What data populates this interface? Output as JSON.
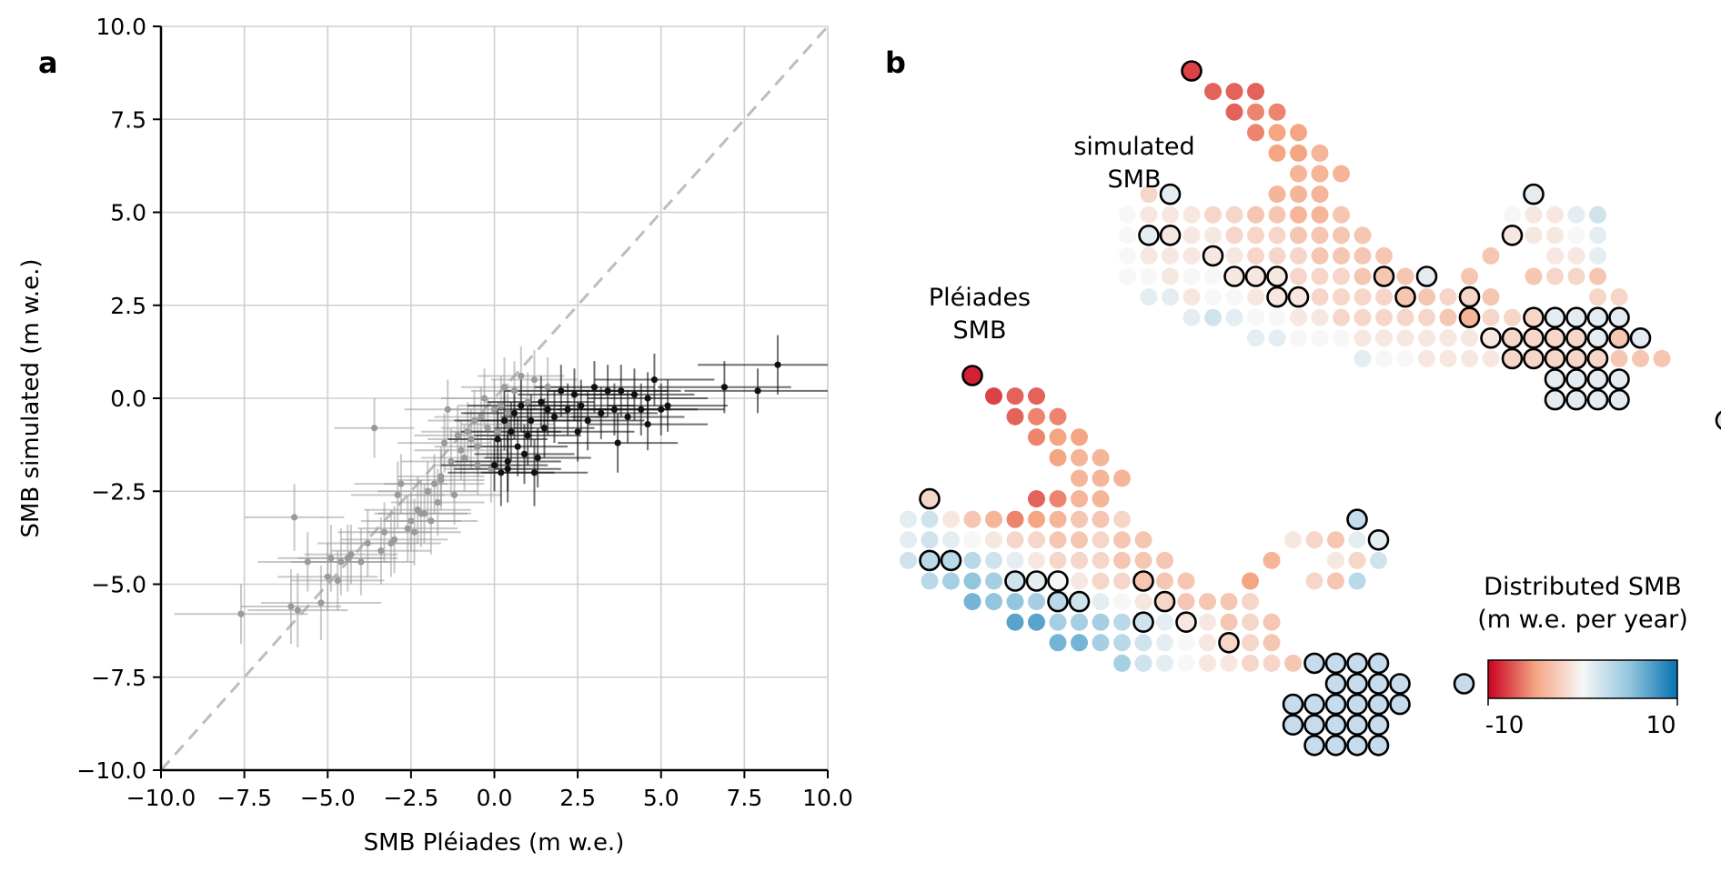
{
  "panel_a": {
    "label": "a",
    "xlabel": "SMB Pléiades (m w.e.)",
    "ylabel": "SMB simulated (m w.e.)",
    "xlim": [
      -10,
      10
    ],
    "ylim": [
      -10,
      10
    ],
    "ticks": [
      "−10.0",
      "−7.5",
      "−5.0",
      "−2.5",
      "0.0",
      "2.5",
      "5.0",
      "7.5",
      "10.0"
    ]
  },
  "panel_b": {
    "label": "b",
    "simulated_label": [
      "simulated",
      "SMB"
    ],
    "pleiades_label": [
      "Pléiades",
      "SMB"
    ],
    "colorbar_title": [
      "Distributed SMB",
      "(m w.e. per year)"
    ],
    "colorbar_min": "-10",
    "colorbar_max": "10"
  },
  "colors": {
    "neg": "#ca0020",
    "mid": "#f7f7f7",
    "pos": "#2a74b2",
    "grey_pts": "#9a9a9a",
    "black_pts": "#111111"
  },
  "chart_data": [
    {
      "type": "scatter",
      "title": "",
      "xlabel": "SMB Pléiades (m w.e.)",
      "ylabel": "SMB simulated (m w.e.)",
      "xlim": [
        -10,
        10
      ],
      "ylim": [
        -10,
        10
      ],
      "grid": true,
      "identity_line": true,
      "series": [
        {
          "name": "grey points",
          "color": "#9a9a9a",
          "x": [
            -7.6,
            -6.1,
            -6.0,
            -5.9,
            -5.6,
            -5.2,
            -5.0,
            -4.9,
            -4.7,
            -4.6,
            -4.4,
            -4.3,
            -4.0,
            -3.8,
            -3.6,
            -3.4,
            -3.3,
            -3.1,
            -3.0,
            -2.8,
            -2.6,
            -2.5,
            -2.4,
            -2.3,
            -2.1,
            -2.0,
            -1.9,
            -1.8,
            -1.7,
            -1.6,
            -1.5,
            -1.4,
            -1.3,
            -1.2,
            -1.1,
            -1.0,
            -0.9,
            -0.8,
            -0.7,
            -0.6,
            -0.5,
            -0.4,
            -0.3,
            -0.2,
            -0.1,
            0.0,
            0.1,
            0.2,
            0.3,
            0.4,
            0.6,
            0.8,
            1.0,
            1.2,
            -2.9,
            -2.2,
            -1.6,
            -0.5,
            0.4,
            1.6
          ],
          "y": [
            -5.8,
            -5.6,
            -3.2,
            -5.7,
            -4.4,
            -5.5,
            -4.8,
            -4.3,
            -4.9,
            -4.4,
            -4.3,
            -4.2,
            -4.4,
            -3.9,
            -0.8,
            -4.1,
            -3.6,
            -3.9,
            -3.8,
            -2.3,
            -3.5,
            -3.3,
            -3.6,
            -3.0,
            -3.1,
            -2.5,
            -3.3,
            -2.3,
            -2.8,
            -2.1,
            -1.2,
            -0.3,
            -1.7,
            -2.6,
            -1.0,
            -1.4,
            -1.6,
            -0.9,
            -1.1,
            -0.6,
            -1.3,
            -0.5,
            0.0,
            -0.8,
            -1.9,
            -0.3,
            -0.9,
            -0.2,
            0.3,
            -0.7,
            0.2,
            0.6,
            -0.1,
            0.5,
            -2.6,
            -3.1,
            -2.2,
            -1.8,
            -0.4,
            0.3
          ],
          "xerr": [
            2.0,
            1.5,
            1.5,
            1.5,
            1.5,
            1.8,
            1.5,
            1.6,
            1.4,
            1.5,
            1.5,
            1.4,
            1.6,
            1.5,
            1.2,
            1.5,
            1.4,
            1.5,
            1.6,
            1.4,
            1.5,
            1.5,
            1.4,
            1.6,
            1.4,
            1.5,
            1.4,
            1.5,
            1.4,
            1.3,
            1.4,
            1.3,
            1.5,
            1.4,
            1.3,
            1.4,
            1.3,
            1.4,
            1.3,
            1.4,
            1.3,
            1.4,
            1.3,
            1.4,
            1.4,
            1.3,
            1.4,
            1.3,
            1.3,
            1.4,
            1.3,
            1.3,
            1.3,
            1.3,
            1.4,
            1.4,
            1.3,
            1.3,
            1.3,
            1.3
          ],
          "yerr": [
            0.8,
            1.0,
            0.9,
            1.0,
            0.8,
            1.0,
            0.9,
            0.9,
            0.8,
            0.9,
            0.9,
            0.8,
            0.9,
            0.9,
            0.8,
            0.9,
            0.8,
            0.9,
            0.9,
            0.8,
            0.9,
            0.8,
            0.9,
            0.9,
            0.8,
            0.8,
            0.9,
            0.8,
            0.9,
            0.8,
            0.8,
            0.8,
            0.9,
            0.8,
            0.8,
            0.8,
            0.9,
            0.8,
            0.8,
            0.8,
            0.8,
            0.8,
            0.8,
            0.8,
            0.9,
            0.8,
            0.8,
            0.8,
            0.8,
            0.8,
            0.8,
            0.8,
            0.8,
            0.8,
            0.9,
            0.9,
            0.8,
            0.8,
            0.8,
            0.8
          ]
        },
        {
          "name": "black points",
          "color": "#111111",
          "x": [
            0.0,
            0.1,
            0.2,
            0.3,
            0.4,
            0.5,
            0.6,
            0.7,
            0.8,
            0.9,
            1.0,
            1.1,
            1.2,
            1.4,
            1.5,
            1.6,
            1.8,
            2.0,
            2.2,
            2.4,
            2.6,
            2.8,
            3.0,
            3.2,
            3.4,
            3.6,
            3.8,
            4.0,
            4.2,
            4.4,
            4.6,
            4.8,
            5.0,
            5.2,
            6.9,
            7.9,
            8.5,
            0.4,
            1.3,
            2.5,
            3.7,
            4.6
          ],
          "y": [
            -1.8,
            -1.1,
            -2.0,
            -0.6,
            -1.7,
            -0.9,
            -0.4,
            -1.3,
            -0.2,
            -1.5,
            -1.0,
            -0.6,
            -2.0,
            -0.1,
            -0.8,
            -0.3,
            -0.5,
            0.2,
            -0.3,
            0.1,
            -0.2,
            -0.6,
            0.3,
            -0.4,
            0.2,
            -0.3,
            0.2,
            -0.5,
            0.1,
            -0.3,
            0.0,
            0.5,
            -0.3,
            -0.2,
            0.3,
            0.2,
            0.9,
            -1.9,
            -1.6,
            -0.9,
            -1.2,
            -0.7
          ],
          "xerr": [
            1.6,
            1.5,
            1.6,
            1.5,
            1.6,
            1.5,
            1.6,
            1.5,
            1.6,
            1.5,
            1.6,
            1.5,
            1.6,
            1.6,
            1.5,
            1.6,
            1.6,
            1.7,
            1.6,
            1.7,
            1.6,
            1.7,
            1.8,
            1.7,
            1.8,
            1.7,
            1.8,
            1.7,
            1.8,
            1.7,
            1.8,
            1.8,
            1.9,
            1.8,
            2.0,
            2.2,
            2.4,
            1.6,
            1.6,
            1.7,
            1.8,
            1.8
          ],
          "yerr": [
            0.7,
            0.8,
            0.9,
            0.8,
            0.8,
            0.8,
            0.7,
            0.8,
            0.7,
            0.8,
            0.8,
            0.7,
            0.9,
            0.7,
            0.8,
            0.7,
            0.7,
            0.7,
            0.7,
            0.7,
            0.7,
            0.8,
            0.7,
            0.7,
            0.7,
            0.7,
            0.7,
            0.7,
            0.7,
            0.7,
            0.7,
            0.7,
            0.7,
            0.7,
            0.7,
            0.6,
            0.8,
            0.9,
            0.8,
            0.8,
            0.8,
            0.7
          ]
        }
      ]
    },
    {
      "type": "heatmap",
      "title": "Distributed SMB (m w.e. per year)",
      "colorbar_range": [
        -10,
        10
      ],
      "colormap": "RdBu",
      "maps": [
        {
          "name": "simulated SMB",
          "rows": [
            {
              "row": 0,
              "c0": 0,
              "values": [
                -8
              ]
            },
            {
              "row": 1,
              "c0": 1,
              "values": [
                -7,
                -7,
                -7
              ]
            },
            {
              "row": 2,
              "c0": 2,
              "values": [
                -7,
                -6,
                -6
              ]
            },
            {
              "row": 3,
              "c0": 3,
              "values": [
                -6,
                -5,
                -5
              ]
            },
            {
              "row": 4,
              "c0": 4,
              "values": [
                -5,
                -5,
                -4
              ]
            },
            {
              "row": 5,
              "c0": 5,
              "values": [
                -4,
                -4,
                -4
              ]
            },
            {
              "row": 6,
              "c0": -1,
              "values": [
                -2,
                null,
                null,
                null,
                null,
                null,
                -4,
                -4,
                -4
              ]
            },
            {
              "row": 7,
              "c0": -2,
              "values": [
                0,
                -1,
                -1,
                -1,
                -2,
                -2,
                -3,
                -3,
                -4,
                -4,
                -3,
                null,
                null,
                null,
                null,
                null,
                null,
                null,
                0,
                -1,
                -1,
                1,
                2
              ]
            },
            {
              "row": 8,
              "c0": -2,
              "values": [
                0,
                1,
                -1,
                -1,
                -1,
                -2,
                -2,
                -2,
                -3,
                -3,
                -3,
                -3,
                null,
                null,
                null,
                null,
                null,
                null,
                -1,
                -1,
                -1,
                0,
                1
              ]
            },
            {
              "row": 9,
              "c0": -2,
              "values": [
                0,
                -1,
                -1,
                -1,
                -1,
                -1,
                -2,
                -2,
                -2,
                -3,
                -3,
                -3,
                -3,
                null,
                null,
                null,
                null,
                -3,
                null,
                null,
                -1,
                -1,
                1
              ]
            },
            {
              "row": 10,
              "c0": -2,
              "values": [
                0,
                0,
                -1,
                0,
                0,
                -1,
                -1,
                -1,
                -2,
                -2,
                -2,
                -3,
                -3,
                -3,
                null,
                null,
                -3,
                null,
                null,
                -3,
                -2,
                -2,
                -3
              ]
            },
            {
              "row": 11,
              "c0": -1,
              "values": [
                1,
                1,
                -1,
                0,
                0,
                -1,
                -1,
                -1,
                -2,
                -2,
                -2,
                -2,
                -3,
                -3,
                -2,
                -2,
                -3,
                null,
                null,
                null,
                null,
                -2,
                -2
              ]
            },
            {
              "row": 12,
              "c0": 1,
              "values": [
                1,
                2,
                1,
                0,
                0,
                -1,
                -1,
                -2,
                -2,
                -2,
                -2,
                -2,
                -3,
                -4,
                -2,
                -2,
                -2
              ]
            },
            {
              "row": 13,
              "c0": 4,
              "values": [
                1,
                1,
                0,
                0,
                0,
                -1,
                -1,
                -1,
                -1,
                -1,
                -1,
                -1,
                -2,
                -2,
                -2,
                -2,
                null,
                -3
              ]
            },
            {
              "row": 14,
              "c0": 9,
              "values": [
                1,
                0,
                0,
                -1,
                -1,
                -1,
                -1,
                -2,
                -2,
                -2,
                -2,
                -2,
                -3,
                -3,
                -3
              ]
            }
          ]
        },
        {
          "name": "Pléiades SMB",
          "rows": [
            {
              "row": 0,
              "c0": 0,
              "values": [
                -9
              ]
            },
            {
              "row": 1,
              "c0": 1,
              "values": [
                -8,
                -7,
                -7
              ]
            },
            {
              "row": 2,
              "c0": 2,
              "values": [
                -7,
                -6,
                -6
              ]
            },
            {
              "row": 3,
              "c0": 3,
              "values": [
                -6,
                -5,
                -5
              ]
            },
            {
              "row": 4,
              "c0": 4,
              "values": [
                -5,
                -4,
                -4
              ]
            },
            {
              "row": 5,
              "c0": 5,
              "values": [
                -4,
                -4,
                -4
              ]
            },
            {
              "row": 6,
              "c0": -1,
              "values": [
                -2,
                null,
                null,
                null,
                null,
                -7,
                -6,
                -4,
                -4
              ]
            },
            {
              "row": 7,
              "c0": -2,
              "values": [
                1,
                2,
                -1,
                -3,
                -4,
                -6,
                -5,
                -4,
                -3,
                -3,
                -2
              ]
            },
            {
              "row": 8,
              "c0": -2,
              "values": [
                1,
                2,
                1,
                0,
                -1,
                -2,
                -2,
                -3,
                -3,
                -2,
                -3,
                -3,
                null,
                null,
                null,
                null,
                null,
                null,
                -1,
                -2,
                -3,
                1,
                1
              ]
            },
            {
              "row": 9,
              "c0": -2,
              "values": [
                2,
                3,
                3,
                3,
                2,
                1,
                -1,
                -2,
                -2,
                -2,
                -3,
                -3,
                -3,
                null,
                null,
                null,
                null,
                -4,
                null,
                null,
                -1,
                -2,
                2
              ]
            },
            {
              "row": 10,
              "c0": -1,
              "values": [
                3,
                4,
                5,
                4,
                2,
                1,
                0,
                -1,
                -2,
                -2,
                -3,
                -3,
                -3,
                null,
                null,
                -5,
                null,
                null,
                -2,
                -3,
                3
              ]
            },
            {
              "row": 11,
              "c0": 1,
              "values": [
                6,
                5,
                5,
                4,
                3,
                2,
                1,
                0,
                -1,
                -2,
                -3,
                -3,
                -3,
                -2
              ]
            },
            {
              "row": 12,
              "c0": 3,
              "values": [
                7,
                7,
                4,
                4,
                4,
                3,
                2,
                1,
                -1,
                -1,
                -3,
                -2,
                -3
              ]
            },
            {
              "row": 13,
              "c0": 5,
              "values": [
                6,
                6,
                4,
                3,
                2,
                1,
                0,
                -1,
                -2,
                -2,
                -3
              ]
            },
            {
              "row": 14,
              "c0": 8,
              "values": [
                4,
                2,
                1,
                0,
                -1,
                -1,
                -2,
                -2,
                -3
              ]
            }
          ]
        }
      ]
    }
  ]
}
